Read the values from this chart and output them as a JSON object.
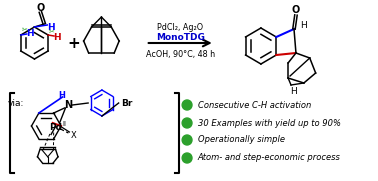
{
  "bg_color": "#ffffff",
  "green_color": "#2ca02c",
  "blue_color": "#0000ff",
  "red_color": "#cc0000",
  "black_color": "#000000",
  "monot_color": "#0000cc",
  "reaction_line1": "PdCl₂, Ag₂O",
  "reaction_line2": "MonoTDG",
  "reaction_line3": "AcOH, 90°C, 48 h",
  "bullet_points": [
    "Consecutive C-H activation",
    "30 Examples with yield up to 90%",
    "Operationally simple",
    "Atom- and step-economic process"
  ],
  "via_text": "via:",
  "plus_sign": "+",
  "O_label": "O",
  "H_label": "H",
  "N_label": "N",
  "Pd_label": "Pd",
  "II_label": "II",
  "X_label": "X",
  "Br_label": "Br"
}
